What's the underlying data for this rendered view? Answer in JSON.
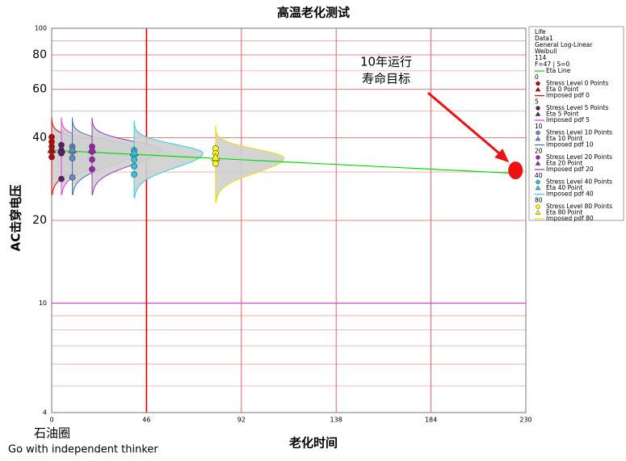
{
  "chart_data": {
    "type": "scatter",
    "title": "高温老化测试",
    "xlabel": "老化时间",
    "ylabel": "AC击穿电压",
    "xlim": [
      0,
      230
    ],
    "xticks": [
      0,
      46,
      92,
      138,
      184,
      230
    ],
    "ylim": [
      4,
      100
    ],
    "yticks": [
      4,
      10,
      20,
      40,
      60,
      80,
      100
    ],
    "log_y": true,
    "grid": true,
    "legend_header": [
      "Life",
      "Data1",
      "General Log-Linear",
      "Weibull",
      "114",
      "F=47 | S=0"
    ],
    "eta_line": {
      "name": "Eta Line",
      "color": "#00e000",
      "x": [
        0,
        227
      ],
      "values": [
        36.0,
        29.6
      ]
    },
    "series": [
      {
        "group": "0",
        "name": "Stress Level 0 Points",
        "eta_name": "Eta 0 Point",
        "pdf_name": "Imposed pdf 0",
        "color": "#c00000",
        "pdf_color": "#e00000",
        "x": [
          0,
          0,
          0,
          0,
          0
        ],
        "values": [
          40.2,
          38.6,
          37.1,
          35.6,
          34.0
        ],
        "eta_x": 0,
        "eta_value": 36.0
      },
      {
        "group": "5",
        "name": "Stress Level 5 Points",
        "eta_name": "Eta 5 Point",
        "pdf_name": "Imposed pdf 5",
        "color": "#5a1a6a",
        "pdf_color": "#e040e0",
        "x": [
          4.7,
          4.7,
          4.7,
          4.7
        ],
        "values": [
          37.6,
          36.0,
          35.1,
          28.3
        ],
        "eta_x": 4.7,
        "eta_value": 36.0
      },
      {
        "group": "10",
        "name": "Stress Level 10 Points",
        "eta_name": "Eta 10 Point",
        "pdf_name": "Imposed pdf 10",
        "color": "#5b8dc8",
        "pdf_color": "#4070c0",
        "x": [
          10,
          10,
          10,
          10
        ],
        "values": [
          37.1,
          35.6,
          33.7,
          28.7
        ],
        "eta_x": 10,
        "eta_value": 36.0
      },
      {
        "group": "20",
        "name": "Stress Level 20 Points",
        "eta_name": "Eta 20 Point",
        "pdf_name": "Imposed pdf 20",
        "color": "#a020b0",
        "pdf_color": "#a030c0",
        "x": [
          19.6,
          19.6,
          19.6,
          19.6
        ],
        "values": [
          37.1,
          35.6,
          33.3,
          30.7
        ],
        "eta_x": 19.6,
        "eta_value": 36.0
      },
      {
        "group": "40",
        "name": "Stress Level 40 Points",
        "eta_name": "Eta 40 Point",
        "pdf_name": "Imposed pdf 40",
        "color": "#20c8e0",
        "pdf_color": "#20d0e8",
        "x": [
          40,
          40,
          40,
          40,
          40
        ],
        "values": [
          36.0,
          34.6,
          33.3,
          31.5,
          29.4
        ],
        "eta_x": 40,
        "eta_value": 35.1
      },
      {
        "group": "80",
        "name": "Stress Level 80 Points",
        "eta_name": "Eta 80 Point",
        "pdf_name": "Imposed pdf 80",
        "color": "#ffff00",
        "pdf_color": "#f0e000",
        "x": [
          79.5,
          79.5,
          79.5,
          79.5
        ],
        "values": [
          36.5,
          35.1,
          33.3,
          32.2
        ],
        "eta_x": 79.5,
        "eta_value": 33.7
      }
    ],
    "annotation": {
      "lines": [
        "10年运行",
        "寿命目标"
      ],
      "x": 225,
      "value": 30.4,
      "color": "#ee1111"
    },
    "watermark": [
      "石油圈",
      "Go with independent thinker"
    ]
  }
}
